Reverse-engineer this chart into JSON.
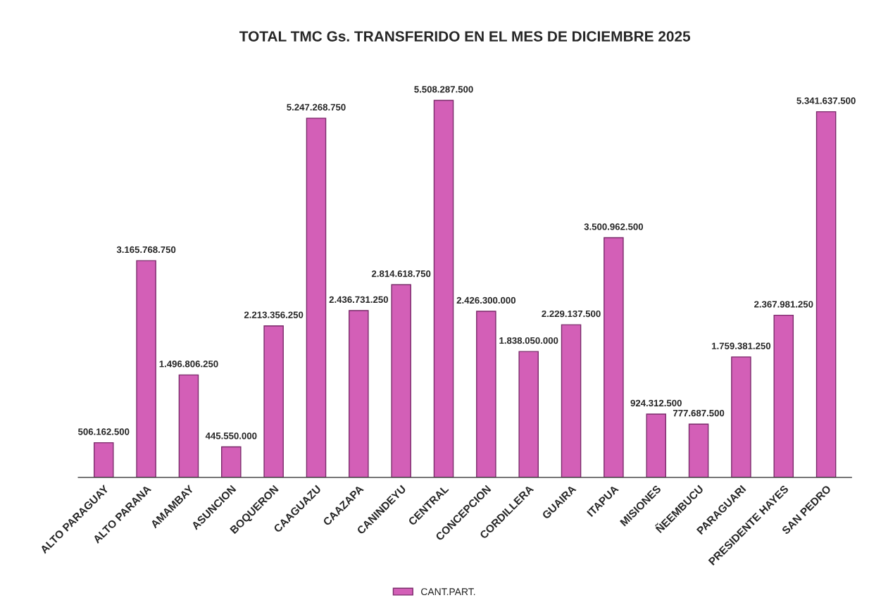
{
  "chart_data": {
    "type": "bar",
    "title": "TOTAL TMC Gs. TRANSFERIDO EN EL MES DE DICIEMBRE 2025",
    "categories": [
      "ALTO PARAGUAY",
      "ALTO PARANA",
      "AMAMBAY",
      "ASUNCION",
      "BOQUERON",
      "CAAGUAZU",
      "CAAZAPA",
      "CANINDEYU",
      "CENTRAL",
      "CONCEPCION",
      "CORDILLERA",
      "GUAIRA",
      "ITAPUA",
      "MISIONES",
      "ÑEEMBUCU",
      "PARAGUARI",
      "PRESIDENTE HAYES",
      "SAN PEDRO"
    ],
    "series": [
      {
        "name": "CANT.PART.",
        "color": "#d35fb7",
        "values": [
          506162500,
          3165768750,
          1496806250,
          445550000,
          2213356250,
          5247268750,
          2436731250,
          2814618750,
          5508287500,
          2426300000,
          1838050000,
          2229137500,
          3500962500,
          924312500,
          777687500,
          1759381250,
          2367981250,
          5341637500
        ],
        "value_labels": [
          "506.162.500",
          "3.165.768.750",
          "1.496.806.250",
          "445.550.000",
          "2.213.356.250",
          "5.247.268.750",
          "2.436.731.250",
          "2.814.618.750",
          "5.508.287.500",
          "2.426.300.000",
          "1.838.050.000",
          "2.229.137.500",
          "3.500.962.500",
          "924.312.500",
          "777.687.500",
          "1.759.381.250",
          "2.367.981.250",
          "5.341.637.500"
        ]
      }
    ],
    "legend": "bottom"
  }
}
